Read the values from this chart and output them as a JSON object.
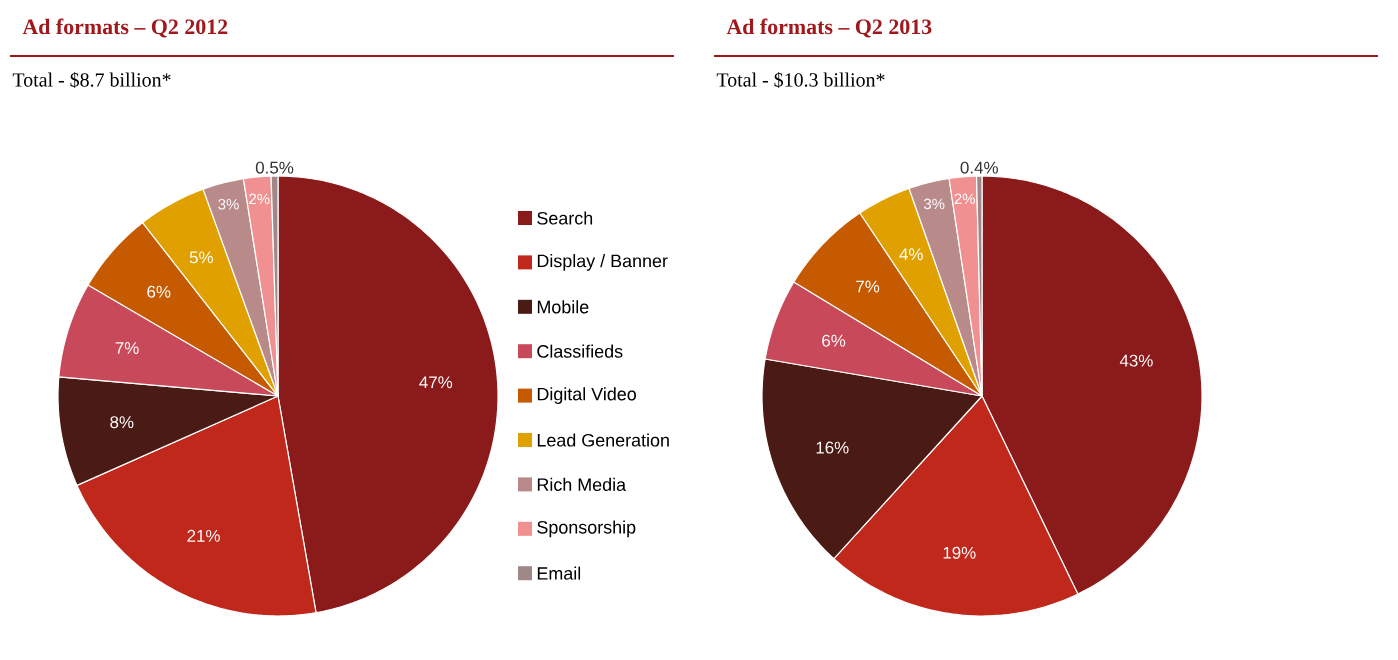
{
  "chart_data": [
    {
      "type": "pie",
      "title": "Ad formats – Q2 2012",
      "subtitle": "Total - $8.7 billion*",
      "categories": [
        "Search",
        "Display / Banner",
        "Mobile",
        "Classifieds",
        "Digital Video",
        "Lead Generation",
        "Rich Media",
        "Sponsorship",
        "Email"
      ],
      "values": [
        47,
        21,
        8,
        7,
        6,
        5,
        3,
        2,
        0.5
      ],
      "value_labels": [
        "47%",
        "21%",
        "8%",
        "7%",
        "6%",
        "5%",
        "3%",
        "2%",
        "0.5%"
      ],
      "colors": [
        "#8b1a1a",
        "#c0281c",
        "#4a1a14",
        "#c84a5a",
        "#c65a00",
        "#e0a000",
        "#b88a8a",
        "#f09090",
        "#a08888"
      ],
      "legend": "right"
    },
    {
      "type": "pie",
      "title": "Ad formats – Q2 2013",
      "subtitle": "Total - $10.3 billion*",
      "categories": [
        null,
        null,
        null,
        null,
        null,
        null,
        null,
        null,
        null
      ],
      "values": [
        43,
        19,
        16,
        6,
        7,
        4,
        3,
        2,
        0.4
      ],
      "value_labels": [
        "43%",
        "19%",
        "16%",
        "6%",
        "7%",
        "4%",
        "3%",
        "2%",
        "0.4%"
      ],
      "colors": [
        "#8b1a1a",
        "#c0281c",
        "#4a1a14",
        "#c84a5a",
        "#c65a00",
        "#e0a000",
        "#b88a8a",
        "#f09090",
        "#a08888"
      ]
    }
  ]
}
